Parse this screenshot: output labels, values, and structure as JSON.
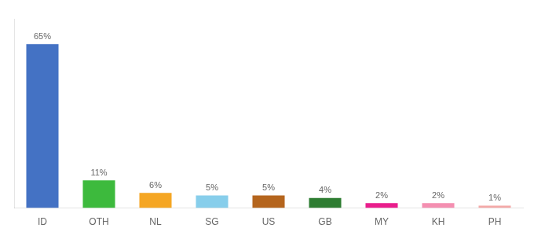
{
  "chart_data": {
    "type": "bar",
    "categories": [
      "ID",
      "OTH",
      "NL",
      "SG",
      "US",
      "GB",
      "MY",
      "KH",
      "PH"
    ],
    "values": [
      65,
      11,
      6,
      5,
      5,
      4,
      2,
      2,
      1
    ],
    "value_labels": [
      "65%",
      "11%",
      "6%",
      "5%",
      "5%",
      "4%",
      "2%",
      "2%",
      "1%"
    ],
    "colors": [
      "#4472c4",
      "#3dba3d",
      "#f5a623",
      "#87ceeb",
      "#b5651d",
      "#2e7d32",
      "#e91e8c",
      "#f48fb1",
      "#f4a9a8"
    ],
    "ylim": [
      0,
      75
    ],
    "data_labels": true,
    "tick_labels": "x",
    "grid": false
  }
}
